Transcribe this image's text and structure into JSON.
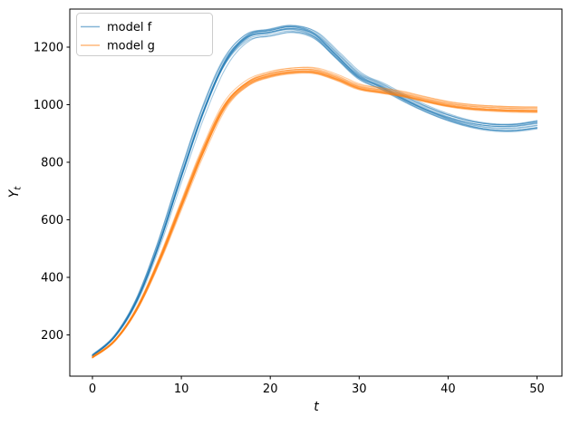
{
  "chart_data": {
    "type": "line",
    "title": "",
    "xlabel": "t",
    "ylabel": "Y_t",
    "xlim": [
      -2.5,
      52.5
    ],
    "ylim": [
      57,
      1332
    ],
    "x_ticks": [
      0,
      10,
      20,
      30,
      40,
      50
    ],
    "y_ticks": [
      200,
      400,
      600,
      800,
      1000,
      1200
    ],
    "grid": false,
    "legend": {
      "position": "upper left",
      "entries": [
        "model f",
        "model g"
      ]
    },
    "x": [
      0,
      2.5,
      5,
      7.5,
      10,
      12.5,
      15,
      17.5,
      20,
      22.5,
      25,
      27.5,
      30,
      32.5,
      35,
      37.5,
      40,
      42.5,
      45,
      47.5,
      50
    ],
    "series": [
      {
        "name": "model f",
        "color": "#1f77b4",
        "values": [
          129,
          195,
          320,
          515,
          750,
          975,
          1150,
          1235,
          1252,
          1265,
          1243,
          1172,
          1100,
          1064,
          1022,
          985,
          955,
          933,
          921,
          920,
          930
        ],
        "ensemble": {
          "n_lines": 14,
          "line_alpha": 0.4,
          "line_width": 1.1,
          "time_jitter": 0.35,
          "amp_jitter": 0.015,
          "end_spread": 13,
          "base_offset": 3.5,
          "baseline": 125,
          "seed": 42
        }
      },
      {
        "name": "model g",
        "color": "#ff7f0e",
        "values": [
          123,
          180,
          290,
          455,
          648,
          840,
          1000,
          1076,
          1106,
          1119,
          1119,
          1095,
          1063,
          1050,
          1037,
          1019,
          1003,
          993,
          988,
          985,
          984
        ],
        "ensemble": {
          "n_lines": 14,
          "line_alpha": 0.4,
          "line_width": 1.1,
          "time_jitter": 0.3,
          "amp_jitter": 0.013,
          "end_spread": 4,
          "base_offset": 3,
          "baseline": 118,
          "seed": 1337
        }
      }
    ]
  },
  "style": {
    "spine_color": "#000000",
    "tick_color": "#000000",
    "legend_border_color": "#cccccc",
    "legend_bg_color": "#ffffff"
  }
}
